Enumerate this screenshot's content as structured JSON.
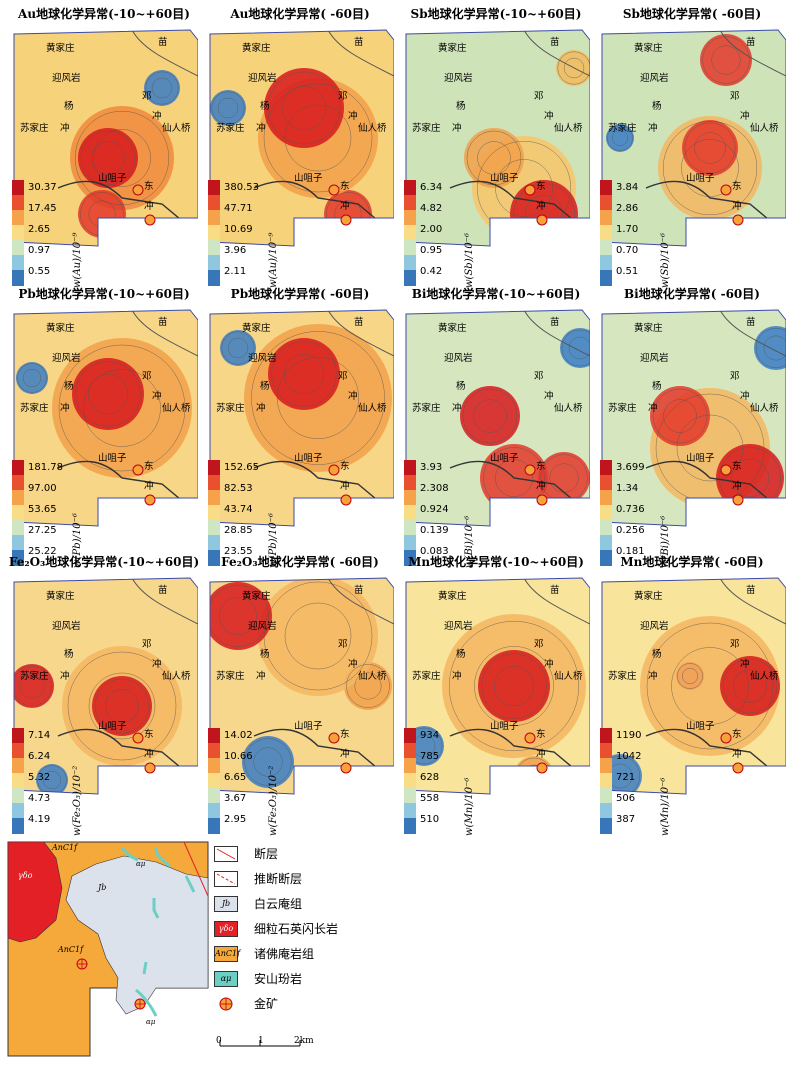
{
  "places": {
    "hjz": "黄家庄",
    "yfy": "迎风岩",
    "yang": "杨",
    "szj": "苏家庄",
    "chong": "冲",
    "deng": "邓",
    "xrq": "仙人桥",
    "szz": "山咀子",
    "dong": "东",
    "miao": "苗"
  },
  "panels": [
    {
      "title": "Au地球化学异常(-10~+60目)",
      "unit": "w(Au)/10⁻⁹",
      "ticks": [
        "30.37",
        "17.45",
        "2.65",
        "0.97",
        "0.55"
      ]
    },
    {
      "title": "Au地球化学异常( -60目)",
      "unit": "w(Au)/10⁻⁹",
      "ticks": [
        "380.53",
        "47.71",
        "10.69",
        "3.96",
        "2.11"
      ]
    },
    {
      "title": "Sb地球化学异常(-10~+60目)",
      "unit": "w(Sb)/10⁻⁶",
      "ticks": [
        "6.34",
        "4.82",
        "2.00",
        "0.95",
        "0.42"
      ]
    },
    {
      "title": "Sb地球化学异常( -60目)",
      "unit": "w(Sb)/10⁻⁶",
      "ticks": [
        "3.84",
        "2.86",
        "1.70",
        "0.70",
        "0.51"
      ]
    },
    {
      "title": "Pb地球化学异常(-10~+60目)",
      "unit": "w(Pb)/10⁻⁶",
      "ticks": [
        "181.78",
        "97.00",
        "53.65",
        "27.25",
        "25.22"
      ]
    },
    {
      "title": "Pb地球化学异常( -60目)",
      "unit": "w(Pb)/10⁻⁶",
      "ticks": [
        "152.65",
        "82.53",
        "43.74",
        "28.85",
        "23.55"
      ]
    },
    {
      "title": "Bi地球化学异常(-10~+60目)",
      "unit": "w(Bi)/10⁻⁶",
      "ticks": [
        "3.93",
        "2.308",
        "0.924",
        "0.139",
        "0.083"
      ]
    },
    {
      "title": "Bi地球化学异常( -60目)",
      "unit": "w(Bi)/10⁻⁶",
      "ticks": [
        "3.699",
        "1.34",
        "0.736",
        "0.256",
        "0.181"
      ]
    },
    {
      "title": "Fe₂O₃地球化学异常(-10~+60目)",
      "unit": "w(Fe₂O₃)/10⁻²",
      "ticks": [
        "7.14",
        "6.24",
        "5.32",
        "4.73",
        "4.19"
      ]
    },
    {
      "title": "Fe₂O₃地球化学异常( -60目)",
      "unit": "w(Fe₂O₃)/10⁻²",
      "ticks": [
        "14.02",
        "10.66",
        "6.65",
        "3.67",
        "2.95"
      ]
    },
    {
      "title": "Mn地球化学异常(-10~+60目)",
      "unit": "w(Mn)/10⁻⁶",
      "ticks": [
        "934",
        "785",
        "628",
        "558",
        "510"
      ]
    },
    {
      "title": "Mn地球化学异常( -60目)",
      "unit": "w(Mn)/10⁻⁶",
      "ticks": [
        "1190",
        "1042",
        "721",
        "506",
        "387"
      ]
    }
  ],
  "geomap": {
    "anc1f": "AnC1f",
    "jb": "Jb",
    "gamma": "γδο",
    "amu": "αμ"
  },
  "legend": [
    {
      "label": "断层",
      "symbol": ""
    },
    {
      "label": "推断断层",
      "symbol": ""
    },
    {
      "label": "白云庵组",
      "symbol": "Jb"
    },
    {
      "label": "细粒石英闪长岩",
      "symbol": "γδο"
    },
    {
      "label": "诸佛庵岩组",
      "symbol": "AnC1f"
    },
    {
      "label": "安山玢岩",
      "symbol": "αμ"
    },
    {
      "label": "金矿",
      "symbol": ""
    }
  ],
  "scale": {
    "t0": "0",
    "t1": "1",
    "t2": "2km"
  }
}
